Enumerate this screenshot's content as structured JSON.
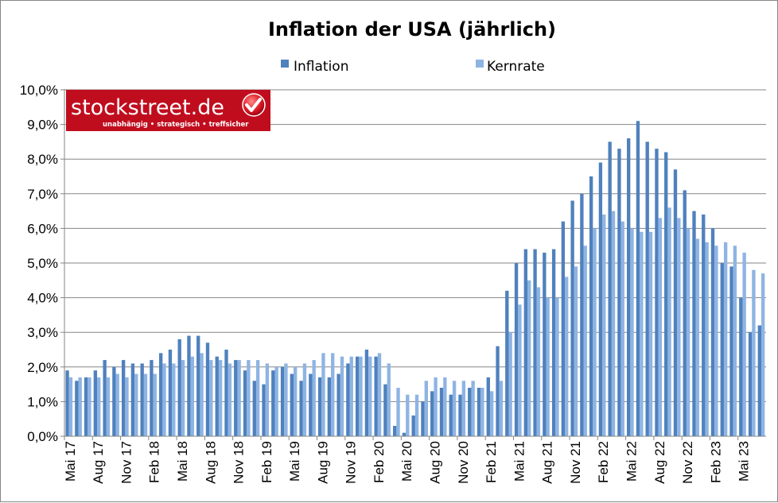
{
  "chart_data": {
    "type": "bar",
    "title": "Inflation der USA (jährlich)",
    "xlabel": "",
    "ylabel": "",
    "ylim": [
      0,
      10
    ],
    "y_tick_step": 1,
    "y_tick_format": "percent, one decimal, comma separator",
    "y_tick_labels": [
      "0,0%",
      "1,0%",
      "2,0%",
      "3,0%",
      "4,0%",
      "5,0%",
      "6,0%",
      "7,0%",
      "8,0%",
      "9,0%",
      "10,0%"
    ],
    "grid": "horizontal",
    "legend_position": "top",
    "x_label_every": 3,
    "categories": [
      "Mai 17",
      "Jun 17",
      "Jul 17",
      "Aug 17",
      "Sep 17",
      "Okt 17",
      "Nov 17",
      "Dez 17",
      "Jan 18",
      "Feb 18",
      "Mär 18",
      "Apr 18",
      "Mai 18",
      "Jun 18",
      "Jul 18",
      "Aug 18",
      "Sep 18",
      "Okt 18",
      "Nov 18",
      "Dez 18",
      "Jan 19",
      "Feb 19",
      "Mär 19",
      "Apr 19",
      "Mai 19",
      "Jun 19",
      "Jul 19",
      "Aug 19",
      "Sep 19",
      "Okt 19",
      "Nov 19",
      "Dez 19",
      "Jan 20",
      "Feb 20",
      "Mär 20",
      "Apr 20",
      "Mai 20",
      "Jun 20",
      "Jul 20",
      "Aug 20",
      "Sep 20",
      "Okt 20",
      "Nov 20",
      "Dez 20",
      "Jan 21",
      "Feb 21",
      "Mär 21",
      "Apr 21",
      "Mai 21",
      "Jun 21",
      "Jul 21",
      "Aug 21",
      "Sep 21",
      "Okt 21",
      "Nov 21",
      "Dez 21",
      "Jan 22",
      "Feb 22",
      "Mär 22",
      "Apr 22",
      "Mai 22",
      "Jun 22",
      "Jul 22",
      "Aug 22",
      "Sep 22",
      "Okt 22",
      "Nov 22",
      "Dez 22",
      "Jan 23",
      "Feb 23",
      "Mär 23",
      "Apr 23",
      "Mai 23",
      "Jun 23",
      "Jul 23"
    ],
    "series": [
      {
        "name": "Inflation",
        "color": "#4f81bd",
        "values": [
          1.9,
          1.6,
          1.7,
          1.9,
          2.2,
          2.0,
          2.2,
          2.1,
          2.1,
          2.2,
          2.4,
          2.5,
          2.8,
          2.9,
          2.9,
          2.7,
          2.3,
          2.5,
          2.2,
          1.9,
          1.6,
          1.5,
          1.9,
          2.0,
          1.8,
          1.6,
          1.8,
          1.7,
          1.7,
          1.8,
          2.1,
          2.3,
          2.5,
          2.3,
          1.5,
          0.3,
          0.1,
          0.6,
          1.0,
          1.3,
          1.4,
          1.2,
          1.2,
          1.4,
          1.4,
          1.7,
          2.6,
          4.2,
          5.0,
          5.4,
          5.4,
          5.3,
          5.4,
          6.2,
          6.8,
          7.0,
          7.5,
          7.9,
          8.5,
          8.3,
          8.6,
          9.1,
          8.5,
          8.3,
          8.2,
          7.7,
          7.1,
          6.5,
          6.4,
          6.0,
          5.0,
          4.9,
          4.0,
          3.0,
          3.2
        ]
      },
      {
        "name": "Kernrate",
        "color": "#8eb4e3",
        "values": [
          1.7,
          1.7,
          1.7,
          1.7,
          1.7,
          1.8,
          1.7,
          1.8,
          1.8,
          1.8,
          2.1,
          2.1,
          2.2,
          2.3,
          2.4,
          2.2,
          2.2,
          2.1,
          2.2,
          2.2,
          2.2,
          2.1,
          2.0,
          2.1,
          2.0,
          2.1,
          2.2,
          2.4,
          2.4,
          2.3,
          2.3,
          2.3,
          2.3,
          2.4,
          2.1,
          1.4,
          1.2,
          1.2,
          1.6,
          1.7,
          1.7,
          1.6,
          1.6,
          1.6,
          1.4,
          1.3,
          1.6,
          3.0,
          3.8,
          4.5,
          4.3,
          4.0,
          4.0,
          4.6,
          4.9,
          5.5,
          6.0,
          6.4,
          6.5,
          6.2,
          6.0,
          5.9,
          5.9,
          6.3,
          6.6,
          6.3,
          6.0,
          5.7,
          5.6,
          5.5,
          5.6,
          5.5,
          5.3,
          4.8,
          4.7
        ]
      }
    ]
  },
  "logo": {
    "name": "stockstreet.de",
    "tagline": "unabhängig • strategisch • treffsicher",
    "color": "#c00d1e"
  }
}
